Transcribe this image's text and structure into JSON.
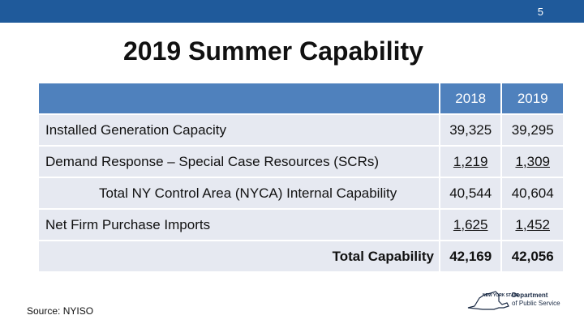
{
  "slide": {
    "page_number": "5",
    "title": "2019 Summer Capability",
    "source": "Source: NYISO"
  },
  "table": {
    "columns": [
      "2018",
      "2019"
    ],
    "rows": [
      {
        "label": "Installed Generation Capacity",
        "v2018": "39,325",
        "v2019": "39,295"
      },
      {
        "label": "Demand Response – Special Case Resources (SCRs)",
        "v2018": "1,219",
        "v2019": "1,309"
      },
      {
        "label": "Total NY Control Area (NYCA) Internal Capability",
        "v2018": "40,544",
        "v2019": "40,604"
      },
      {
        "label": "Net Firm Purchase Imports",
        "v2018": "1,625",
        "v2019": "1,452"
      },
      {
        "label": "Total Capability",
        "v2018": "42,169",
        "v2019": "42,056"
      }
    ]
  },
  "logo": {
    "state_mark": "NEW YORK STATE",
    "line1": "Department",
    "line2": "of Public Service"
  },
  "colors": {
    "top_bar": "#1f5a9b",
    "header_row": "#4f81bd",
    "body_row": "#e6e9f1"
  }
}
